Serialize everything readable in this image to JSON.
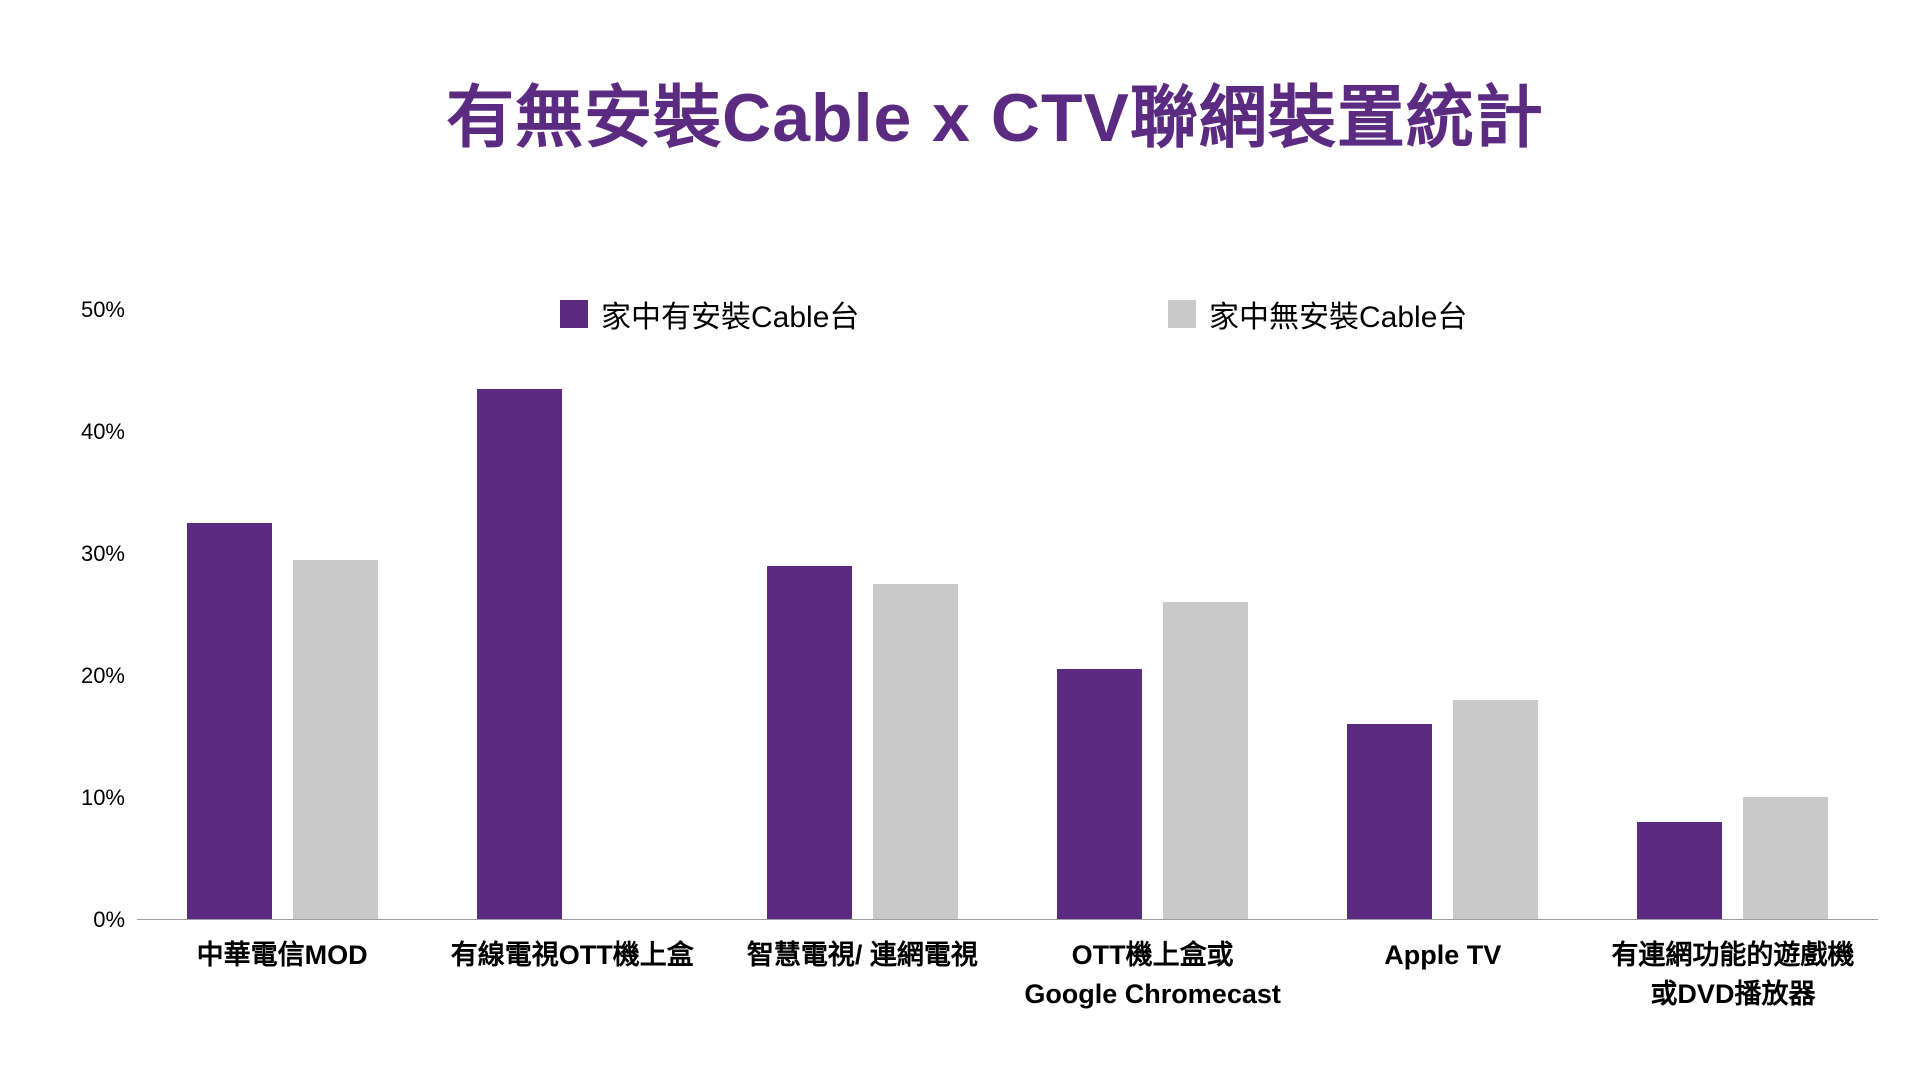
{
  "title": "有無安裝Cable x CTV聯網裝置統計",
  "colors": {
    "title": "#5B2B82",
    "bar_with_cable": "#5B2B82",
    "bar_without_cable": "#C9C9C9",
    "axis_line": "#9E9E9E",
    "text": "#000000",
    "background": "#FFFFFF"
  },
  "legend": {
    "items": [
      {
        "label": "家中有安裝Cable台",
        "color": "#5B2B82"
      },
      {
        "label": "家中無安裝Cable台",
        "color": "#C9C9C9"
      }
    ]
  },
  "chart_data": {
    "type": "bar",
    "title": "有無安裝Cable x CTV聯網裝置統計",
    "categories": [
      "中華電信MOD",
      "有線電視OTT機上盒",
      "智慧電視/ 連網電視",
      "OTT機上盒或\nGoogle Chromecast",
      "Apple TV",
      "有連網功能的遊戲機\n或DVD播放器"
    ],
    "series": [
      {
        "name": "家中有安裝Cable台",
        "color": "#5B2B82",
        "values": [
          32.5,
          43.5,
          29,
          20.5,
          16,
          8
        ]
      },
      {
        "name": "家中無安裝Cable台",
        "color": "#C9C9C9",
        "values": [
          29.5,
          0,
          27.5,
          26,
          18,
          10
        ]
      }
    ],
    "xlabel": "",
    "ylabel": "",
    "ylim": [
      0,
      50
    ],
    "yticks": [
      0,
      10,
      20,
      30,
      40,
      50
    ],
    "ytick_labels": [
      "0%",
      "10%",
      "20%",
      "30%",
      "40%",
      "50%"
    ],
    "grid": false,
    "legend_position": "top"
  }
}
